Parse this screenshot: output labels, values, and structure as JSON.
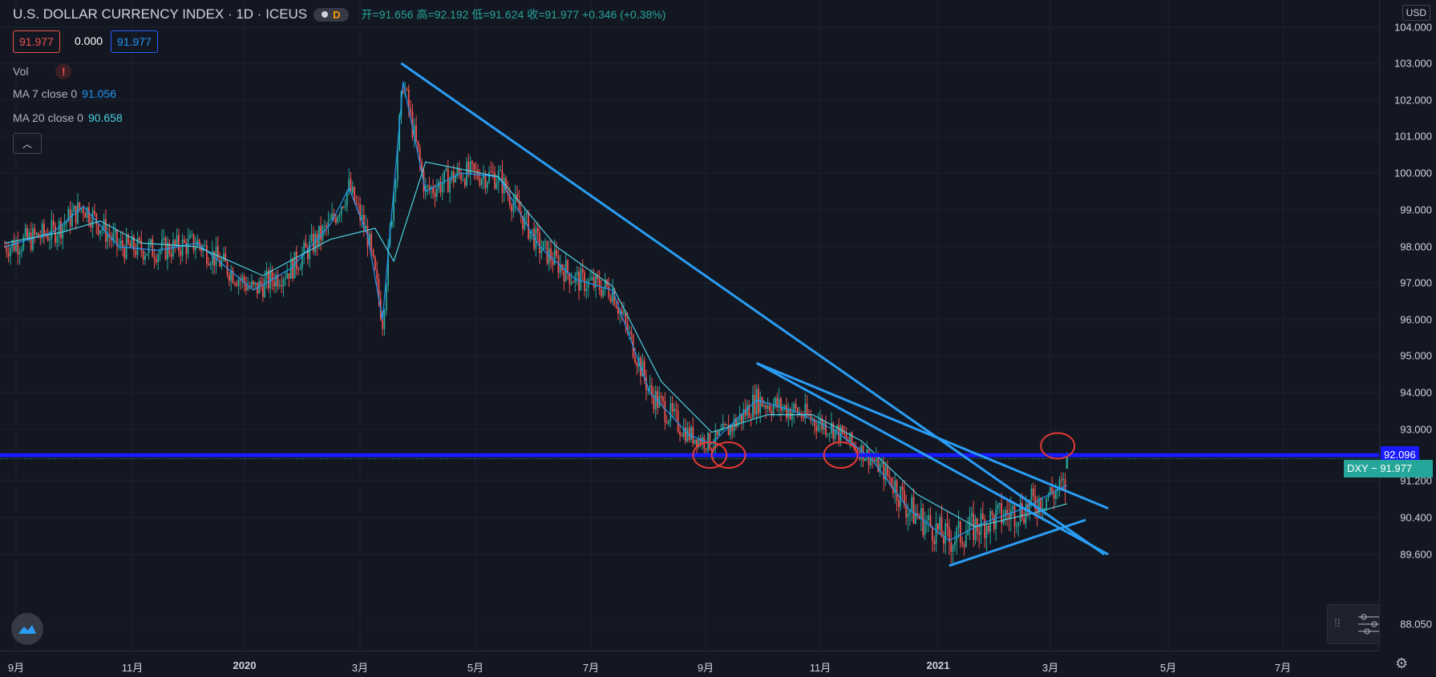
{
  "header": {
    "title": "U.S. DOLLAR CURRENCY INDEX · 1D · ICEUS",
    "interval": "D",
    "ohlc": "开=91.656 高=92.192 低=91.624 收=91.977 +0.346 (+0.38%)"
  },
  "values_row": {
    "box1": "91.977",
    "plain": "0.000",
    "box2": "91.977"
  },
  "indicators": {
    "vol": "Vol",
    "ma7_label": "MA 7 close 0",
    "ma7_value": "91.056",
    "ma20_label": "MA 20 close 0",
    "ma20_value": "90.658"
  },
  "price_axis": {
    "currency": "USD",
    "labels": [
      "104.000",
      "103.000",
      "102.000",
      "101.000",
      "100.000",
      "99.000",
      "98.000",
      "97.000",
      "96.000",
      "95.000",
      "94.000",
      "93.000",
      "91.200",
      "90.400",
      "89.600",
      "88.050"
    ],
    "hline_tag": "92.096",
    "last_tag": "DXY − 91.977"
  },
  "time_axis": {
    "labels": [
      "9月",
      "11月",
      "2020",
      "3月",
      "5月",
      "7月",
      "9月",
      "11月",
      "2021",
      "3月",
      "5月",
      "7月"
    ],
    "bold": [
      "2020",
      "2021"
    ]
  },
  "colors": {
    "up": "#26a69a",
    "down": "#ef5350",
    "ma7": "#2196f3",
    "ma20": "#4dd0e1",
    "trend": "#2a9df4",
    "hline": "#1a1aff",
    "circle": "#e53935"
  },
  "chart_data": {
    "type": "line",
    "symbol": "DXY",
    "title": "U.S. DOLLAR CURRENCY INDEX",
    "ylim": [
      88.05,
      104
    ],
    "price_scale": "non-linear",
    "x_range": [
      "2019-08-20",
      "2021-08-01"
    ],
    "series": [
      {
        "name": "MA 7 close 0",
        "color": "#2196f3",
        "points": [
          [
            "2019-08-20",
            98.0
          ],
          [
            "2019-09-15",
            98.4
          ],
          [
            "2019-10-01",
            99.1
          ],
          [
            "2019-10-20",
            98.0
          ],
          [
            "2019-11-10",
            97.9
          ],
          [
            "2019-12-01",
            98.1
          ],
          [
            "2019-12-31",
            96.8
          ],
          [
            "2020-01-20",
            97.4
          ],
          [
            "2020-02-10",
            98.6
          ],
          [
            "2020-02-20",
            99.6
          ],
          [
            "2020-03-01",
            98.3
          ],
          [
            "2020-03-09",
            96.0
          ],
          [
            "2020-03-20",
            102.5
          ],
          [
            "2020-04-01",
            99.5
          ],
          [
            "2020-04-20",
            100.0
          ],
          [
            "2020-05-10",
            99.9
          ],
          [
            "2020-06-01",
            98.0
          ],
          [
            "2020-06-20",
            97.1
          ],
          [
            "2020-07-10",
            96.8
          ],
          [
            "2020-07-30",
            94.0
          ],
          [
            "2020-08-20",
            92.8
          ],
          [
            "2020-09-01",
            92.5
          ],
          [
            "2020-09-25",
            93.8
          ],
          [
            "2020-10-15",
            93.5
          ],
          [
            "2020-11-05",
            93.0
          ],
          [
            "2020-11-25",
            92.0
          ],
          [
            "2020-12-15",
            90.6
          ],
          [
            "2021-01-06",
            89.9
          ],
          [
            "2021-01-25",
            90.3
          ],
          [
            "2021-02-15",
            90.6
          ],
          [
            "2021-03-05",
            91.0
          ],
          [
            "2021-03-10",
            91.1
          ]
        ]
      },
      {
        "name": "MA 20 close 0",
        "color": "#4dd0e1",
        "points": [
          [
            "2019-08-20",
            98.1
          ],
          [
            "2019-09-20",
            98.4
          ],
          [
            "2019-10-10",
            98.7
          ],
          [
            "2019-11-01",
            98.1
          ],
          [
            "2019-12-01",
            98.0
          ],
          [
            "2020-01-05",
            97.2
          ],
          [
            "2020-02-10",
            98.2
          ],
          [
            "2020-03-05",
            98.5
          ],
          [
            "2020-03-15",
            97.6
          ],
          [
            "2020-04-01",
            100.3
          ],
          [
            "2020-05-10",
            99.9
          ],
          [
            "2020-06-10",
            98.0
          ],
          [
            "2020-07-10",
            96.9
          ],
          [
            "2020-08-05",
            94.3
          ],
          [
            "2020-09-01",
            92.9
          ],
          [
            "2020-10-01",
            93.4
          ],
          [
            "2020-10-25",
            93.4
          ],
          [
            "2020-11-20",
            92.6
          ],
          [
            "2020-12-20",
            90.9
          ],
          [
            "2021-01-20",
            90.2
          ],
          [
            "2021-02-20",
            90.5
          ],
          [
            "2021-03-10",
            90.7
          ]
        ]
      }
    ],
    "trendlines": [
      {
        "from": [
          "2020-03-19",
          103.0
        ],
        "to": [
          "2021-03-30",
          89.6
        ]
      },
      {
        "from": [
          "2020-09-25",
          94.8
        ],
        "to": [
          "2021-04-01",
          90.6
        ]
      },
      {
        "from": [
          "2020-09-25",
          94.8
        ],
        "to": [
          "2021-04-01",
          89.6
        ]
      },
      {
        "from": [
          "2021-01-06",
          89.35
        ],
        "to": [
          "2021-03-20",
          90.35
        ]
      }
    ],
    "horizontal_line": 92.096,
    "last_price": 91.977,
    "marked_lows": [
      [
        "2020-08-31",
        92.1
      ],
      [
        "2020-09-10",
        92.1
      ],
      [
        "2020-11-09",
        92.1
      ],
      [
        "2021-03-05",
        92.2
      ]
    ]
  }
}
